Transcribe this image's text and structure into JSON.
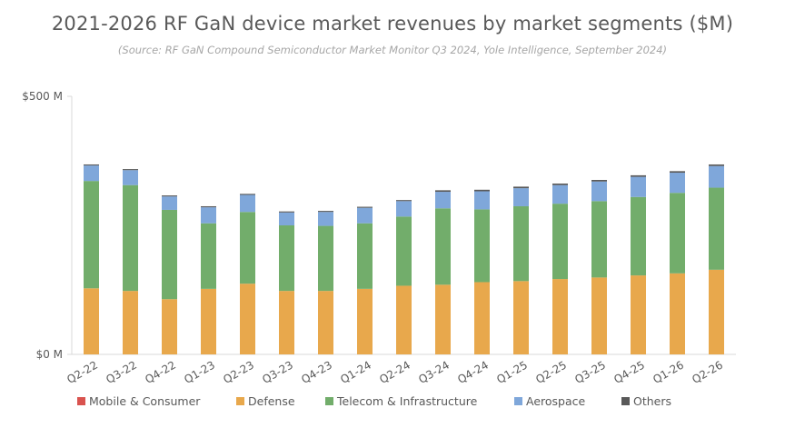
{
  "chart_data": {
    "type": "bar",
    "stacked": true,
    "title": "2021-2026 RF GaN device market revenues by market segments ($M)",
    "subtitle": "(Source: RF GaN Compound Semiconductor Market Monitor Q3 2024, Yole Intelligence, September 2024)",
    "xlabel": "",
    "ylabel": "",
    "ylim": [
      0,
      500
    ],
    "yticks": [
      {
        "value": 0,
        "label": "$0 M"
      },
      {
        "value": 500,
        "label": "$500 M"
      }
    ],
    "grid": false,
    "legend_position": "bottom",
    "categories": [
      "Q2-22",
      "Q3-22",
      "Q4-22",
      "Q1-23",
      "Q2-23",
      "Q3-23",
      "Q4-23",
      "Q1-24",
      "Q2-24",
      "Q3-24",
      "Q4-24",
      "Q1-25",
      "Q2-25",
      "Q3-25",
      "Q4-25",
      "Q1-26",
      "Q2-26"
    ],
    "series": [
      {
        "name": "Mobile & Consumer",
        "color": "#d9534f",
        "values": [
          0,
          0,
          0,
          0,
          0,
          0,
          0,
          0,
          0,
          0,
          0,
          0,
          0,
          0,
          0,
          0,
          0
        ]
      },
      {
        "name": "Defense",
        "color": "#e8a84c",
        "values": [
          128,
          123,
          107,
          127,
          137,
          123,
          123,
          127,
          133,
          135,
          140,
          142,
          146,
          149,
          153,
          157,
          164
        ]
      },
      {
        "name": "Telecom & Infrastructure",
        "color": "#72ad6b",
        "values": [
          208,
          205,
          173,
          127,
          139,
          127,
          126,
          127,
          134,
          148,
          141,
          145,
          146,
          148,
          152,
          156,
          159
        ]
      },
      {
        "name": "Aerospace",
        "color": "#7fa7da",
        "values": [
          30,
          29,
          26,
          31,
          33,
          25,
          27,
          30,
          30,
          32,
          35,
          35,
          36,
          38,
          39,
          39,
          42
        ]
      },
      {
        "name": "Others",
        "color": "#595959",
        "values": [
          2,
          2,
          2,
          2,
          2,
          2,
          2,
          2,
          2,
          3,
          3,
          3,
          3,
          3,
          3,
          3,
          3
        ]
      }
    ]
  }
}
